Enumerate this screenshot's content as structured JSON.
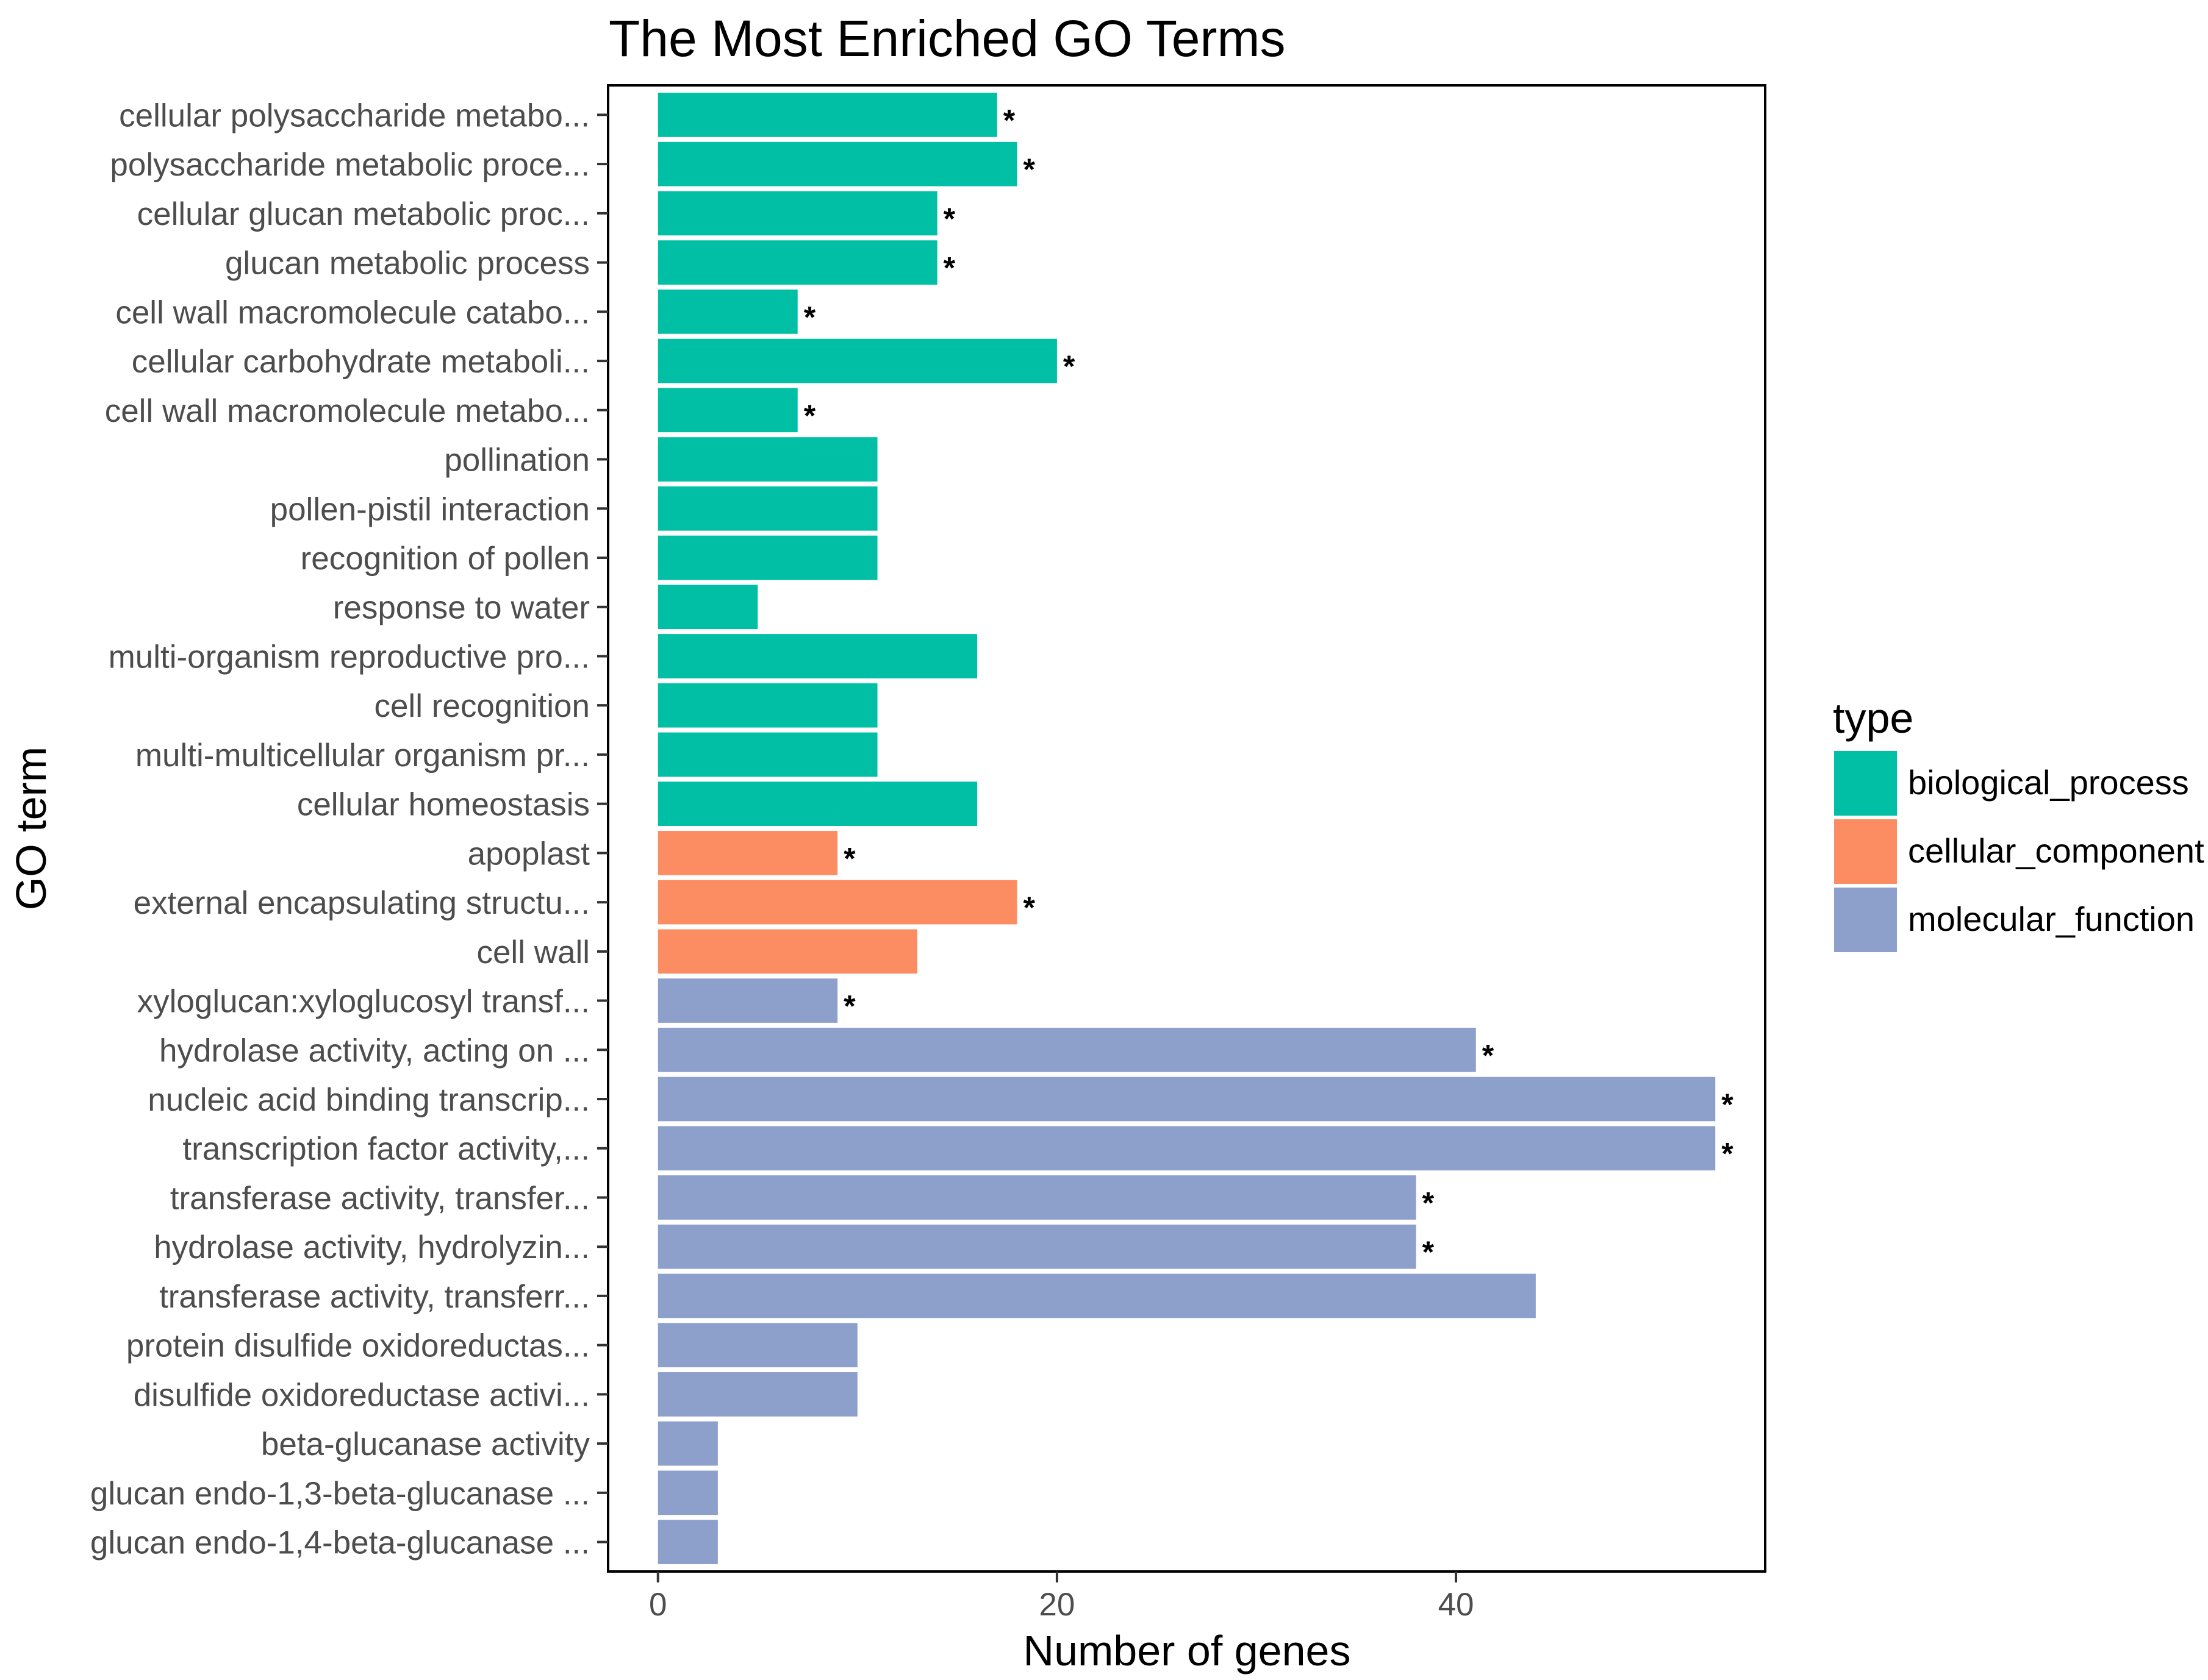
{
  "chart_data": {
    "type": "bar",
    "orientation": "horizontal",
    "title": "The Most Enriched GO Terms",
    "xlabel": "Number of genes",
    "ylabel": "GO term",
    "xlim": [
      -2.5,
      55.5
    ],
    "x_ticks": [
      0,
      20,
      40
    ],
    "legend": {
      "title": "type",
      "placement": "right",
      "entries": [
        {
          "name": "biological_process",
          "color": "#00BFA4"
        },
        {
          "name": "cellular_component",
          "color": "#FC8D62"
        },
        {
          "name": "molecular_function",
          "color": "#8DA0CB"
        }
      ]
    },
    "bars": [
      {
        "label": "cellular polysaccharide metabo...",
        "value": 17,
        "type": "biological_process",
        "significant": true
      },
      {
        "label": "polysaccharide metabolic proce...",
        "value": 18,
        "type": "biological_process",
        "significant": true
      },
      {
        "label": "cellular glucan metabolic proc...",
        "value": 14,
        "type": "biological_process",
        "significant": true
      },
      {
        "label": "glucan metabolic process",
        "value": 14,
        "type": "biological_process",
        "significant": true
      },
      {
        "label": "cell wall macromolecule catabo...",
        "value": 7,
        "type": "biological_process",
        "significant": true
      },
      {
        "label": "cellular carbohydrate metaboli...",
        "value": 20,
        "type": "biological_process",
        "significant": true
      },
      {
        "label": "cell wall macromolecule metabo...",
        "value": 7,
        "type": "biological_process",
        "significant": true
      },
      {
        "label": "pollination",
        "value": 11,
        "type": "biological_process",
        "significant": false
      },
      {
        "label": "pollen-pistil interaction",
        "value": 11,
        "type": "biological_process",
        "significant": false
      },
      {
        "label": "recognition of pollen",
        "value": 11,
        "type": "biological_process",
        "significant": false
      },
      {
        "label": "response to water",
        "value": 5,
        "type": "biological_process",
        "significant": false
      },
      {
        "label": "multi-organism reproductive pro...",
        "value": 16,
        "type": "biological_process",
        "significant": false
      },
      {
        "label": "cell recognition",
        "value": 11,
        "type": "biological_process",
        "significant": false
      },
      {
        "label": "multi-multicellular organism pr...",
        "value": 11,
        "type": "biological_process",
        "significant": false
      },
      {
        "label": "cellular homeostasis",
        "value": 16,
        "type": "biological_process",
        "significant": false
      },
      {
        "label": "apoplast",
        "value": 9,
        "type": "cellular_component",
        "significant": true
      },
      {
        "label": "external encapsulating structu...",
        "value": 18,
        "type": "cellular_component",
        "significant": true
      },
      {
        "label": "cell wall",
        "value": 13,
        "type": "cellular_component",
        "significant": false
      },
      {
        "label": "xyloglucan:xyloglucosyl transf...",
        "value": 9,
        "type": "molecular_function",
        "significant": true
      },
      {
        "label": "hydrolase activity, acting on ...",
        "value": 41,
        "type": "molecular_function",
        "significant": true
      },
      {
        "label": "nucleic acid binding transcrip...",
        "value": 53,
        "type": "molecular_function",
        "significant": true
      },
      {
        "label": "transcription factor activity,...",
        "value": 53,
        "type": "molecular_function",
        "significant": true
      },
      {
        "label": "transferase activity, transfer...",
        "value": 38,
        "type": "molecular_function",
        "significant": true
      },
      {
        "label": "hydrolase activity, hydrolyzin...",
        "value": 38,
        "type": "molecular_function",
        "significant": true
      },
      {
        "label": "transferase activity, transferr...",
        "value": 44,
        "type": "molecular_function",
        "significant": false
      },
      {
        "label": "protein disulfide oxidoreductas...",
        "value": 10,
        "type": "molecular_function",
        "significant": false
      },
      {
        "label": "disulfide oxidoreductase activi...",
        "value": 10,
        "type": "molecular_function",
        "significant": false
      },
      {
        "label": "beta-glucanase activity",
        "value": 3,
        "type": "molecular_function",
        "significant": false
      },
      {
        "label": "glucan endo-1,3-beta-glucanase ...",
        "value": 3,
        "type": "molecular_function",
        "significant": false
      },
      {
        "label": "glucan endo-1,4-beta-glucanase ...",
        "value": 3,
        "type": "molecular_function",
        "significant": false
      }
    ],
    "significance_marker": "*"
  }
}
